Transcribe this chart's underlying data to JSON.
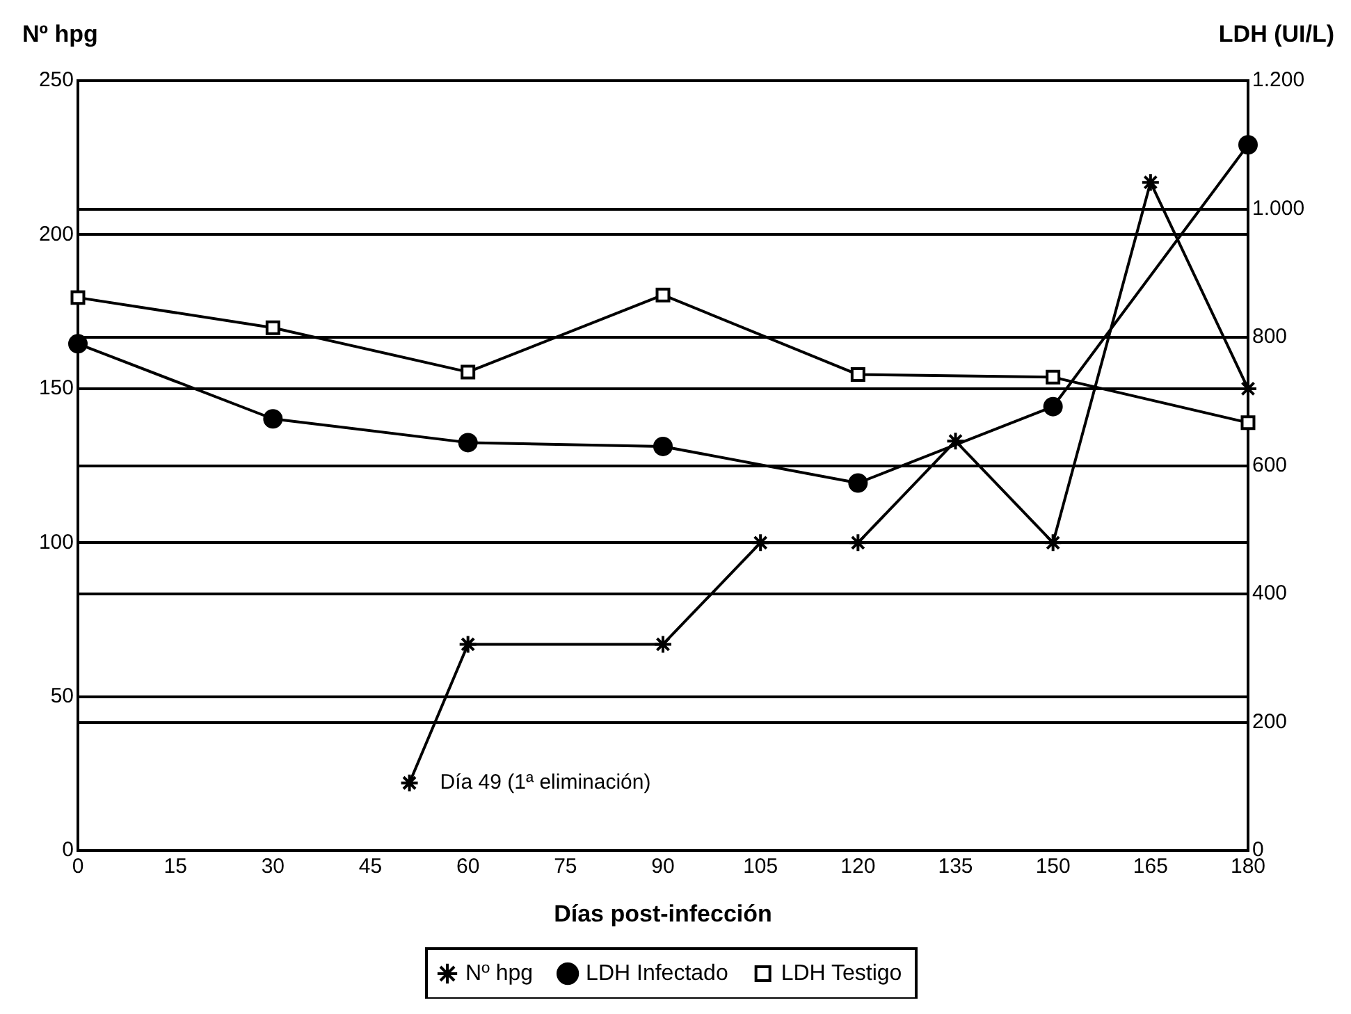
{
  "chart_data": {
    "type": "line",
    "xlabel": "Días post-infección",
    "ylabel": "Nº hpg",
    "y2label": "LDH (UI/L)",
    "xlim": [
      0,
      180
    ],
    "xticks": [
      0,
      15,
      30,
      45,
      60,
      75,
      90,
      105,
      120,
      135,
      150,
      165,
      180
    ],
    "ylim": [
      0,
      250
    ],
    "yticks": [
      0,
      50,
      100,
      150,
      200,
      250
    ],
    "y2lim": [
      0,
      1200
    ],
    "y2ticks": [
      0,
      200,
      400,
      600,
      800,
      {
        "value": 1000,
        "label": "1.000"
      },
      {
        "value": 1200,
        "label": "1.200"
      }
    ],
    "grid": "y",
    "legend": "bottom",
    "annotations": [
      {
        "text": "Día 49 (1ª eliminación)",
        "x": 51,
        "y": 22
      }
    ],
    "series": [
      {
        "name": "Nº hpg",
        "color": "#000000",
        "marker": "cross",
        "x": [
          51,
          60,
          90,
          105,
          120,
          135,
          150,
          165,
          180
        ],
        "values": [
          22,
          67,
          67,
          100,
          100,
          133,
          100,
          217,
          150
        ]
      },
      {
        "name": "LDH Infectado",
        "color": "#000000",
        "marker": "circle",
        "axis": "y2",
        "x": [
          0,
          30,
          60,
          90,
          120,
          150,
          180
        ],
        "values": [
          790,
          673,
          636,
          630,
          573,
          692,
          1100
        ]
      },
      {
        "name": "LDH Testigo",
        "color": "#000000",
        "marker": "square",
        "axis": "y2",
        "x": [
          0,
          30,
          60,
          90,
          120,
          150,
          180
        ],
        "values": [
          862,
          815,
          746,
          866,
          742,
          738,
          667
        ]
      }
    ]
  }
}
